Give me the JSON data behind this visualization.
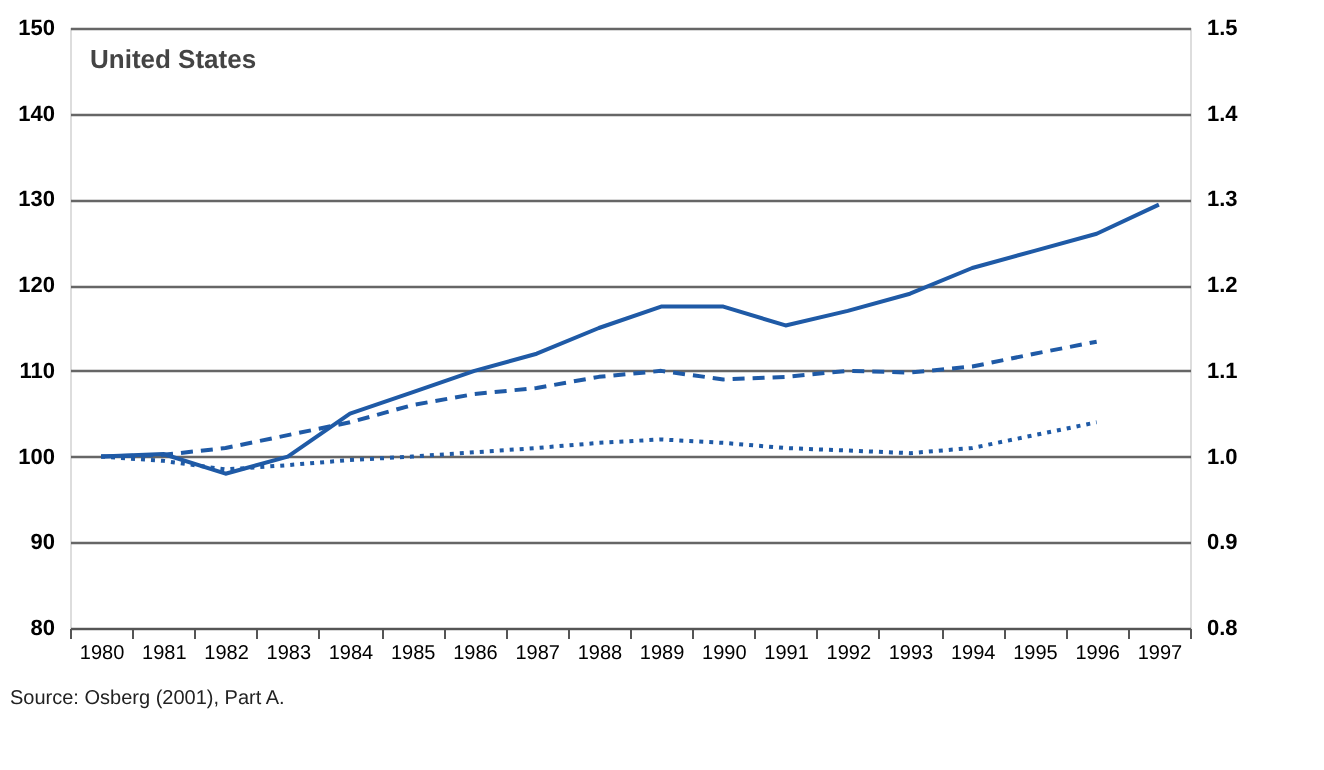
{
  "chart_data": {
    "type": "line",
    "title": "United States",
    "categories": [
      "1980",
      "1981",
      "1982",
      "1983",
      "1984",
      "1985",
      "1986",
      "1987",
      "1988",
      "1989",
      "1990",
      "1991",
      "1992",
      "1993",
      "1994",
      "1995",
      "1996",
      "1997"
    ],
    "series": [
      {
        "color": "#1f5aa6",
        "line_style": "solid",
        "values": [
          100,
          100.3,
          98,
          100,
          105,
          107.5,
          110,
          112,
          115,
          117.5,
          117.5,
          115.3,
          117,
          119,
          122,
          124,
          126,
          129.4
        ]
      },
      {
        "color": "#1f5aa6",
        "line_style": "dashed",
        "values": [
          100,
          100.2,
          101,
          102.5,
          104,
          106,
          107.3,
          108,
          109.3,
          110,
          109,
          109.3,
          110,
          109.8,
          110.5,
          112,
          113.4,
          null
        ]
      },
      {
        "color": "#1f5aa6",
        "line_style": "dotted",
        "values": [
          100,
          99.5,
          98.5,
          99,
          99.6,
          100,
          100.5,
          101,
          101.6,
          102,
          101.6,
          101,
          100.7,
          100.4,
          101,
          102.5,
          104,
          null
        ]
      }
    ],
    "ylim": [
      80,
      150
    ],
    "yticks": [
      80,
      90,
      100,
      110,
      120,
      130,
      140,
      150
    ],
    "y2lim": [
      0.8,
      1.5
    ],
    "y2ticks": [
      0.8,
      0.9,
      {
        "value": 1,
        "label": "1.0"
      },
      1.1,
      1.2,
      1.3,
      1.4,
      1.5
    ],
    "grid": "y",
    "marker": "none",
    "annotations": [
      "Source:  Osberg (2001), Part A."
    ]
  }
}
